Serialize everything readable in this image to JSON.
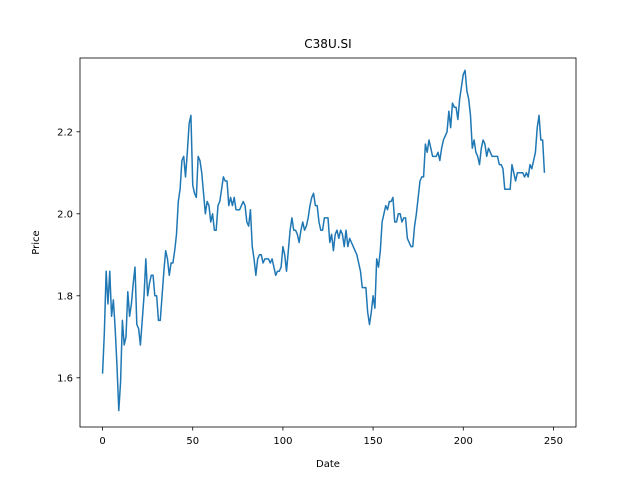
{
  "chart_data": {
    "type": "line",
    "title": "C38U.SI",
    "xlabel": "Date",
    "ylabel": "Price",
    "xlim": [
      -12.5,
      262.5
    ],
    "ylim": [
      1.48,
      2.38
    ],
    "x_ticks": [
      0,
      50,
      100,
      150,
      200,
      250
    ],
    "y_ticks": [
      1.6,
      1.8,
      2.0,
      2.2
    ],
    "y_tick_labels": [
      "1.6",
      "1.8",
      "2.0",
      "2.2"
    ],
    "grid": false,
    "color": "#1f77b4",
    "series": [
      {
        "values": [
          1.61,
          1.71,
          1.86,
          1.78,
          1.86,
          1.75,
          1.79,
          1.72,
          1.63,
          1.52,
          1.59,
          1.74,
          1.68,
          1.7,
          1.81,
          1.75,
          1.78,
          1.83,
          1.87,
          1.73,
          1.72,
          1.68,
          1.74,
          1.8,
          1.89,
          1.8,
          1.83,
          1.85,
          1.85,
          1.8,
          1.8,
          1.74,
          1.74,
          1.8,
          1.86,
          1.91,
          1.89,
          1.85,
          1.88,
          1.88,
          1.91,
          1.95,
          2.03,
          2.06,
          2.13,
          2.14,
          2.09,
          2.15,
          2.22,
          2.24,
          2.07,
          2.05,
          2.04,
          2.14,
          2.13,
          2.1,
          2.05,
          2.0,
          2.03,
          2.02,
          1.98,
          2.0,
          1.96,
          1.96,
          2.02,
          2.03,
          2.06,
          2.09,
          2.08,
          2.08,
          2.02,
          2.04,
          2.02,
          2.04,
          2.01,
          2.01,
          2.01,
          2.02,
          2.03,
          2.02,
          1.98,
          1.97,
          2.01,
          1.92,
          1.89,
          1.85,
          1.89,
          1.9,
          1.9,
          1.88,
          1.89,
          1.89,
          1.89,
          1.88,
          1.89,
          1.87,
          1.85,
          1.86,
          1.86,
          1.87,
          1.92,
          1.9,
          1.86,
          1.91,
          1.96,
          1.99,
          1.96,
          1.96,
          1.95,
          1.93,
          1.96,
          1.98,
          1.96,
          1.97,
          1.99,
          2.02,
          2.04,
          2.05,
          2.02,
          2.02,
          1.98,
          1.96,
          1.96,
          1.99,
          1.99,
          1.99,
          1.93,
          1.95,
          1.91,
          1.95,
          1.96,
          1.94,
          1.96,
          1.95,
          1.92,
          1.96,
          1.92,
          1.94,
          1.93,
          1.92,
          1.91,
          1.9,
          1.88,
          1.86,
          1.82,
          1.82,
          1.82,
          1.76,
          1.73,
          1.76,
          1.8,
          1.77,
          1.89,
          1.87,
          1.91,
          1.98,
          2.0,
          2.02,
          2.01,
          2.03,
          2.03,
          2.04,
          1.98,
          1.98,
          2.0,
          2.0,
          1.98,
          1.99,
          1.99,
          1.94,
          1.93,
          1.92,
          1.92,
          1.97,
          2.0,
          2.04,
          2.08,
          2.09,
          2.09,
          2.17,
          2.15,
          2.18,
          2.16,
          2.14,
          2.14,
          2.14,
          2.15,
          2.13,
          2.16,
          2.18,
          2.19,
          2.2,
          2.25,
          2.21,
          2.27,
          2.26,
          2.26,
          2.23,
          2.28,
          2.31,
          2.34,
          2.35,
          2.3,
          2.28,
          2.24,
          2.16,
          2.18,
          2.15,
          2.14,
          2.12,
          2.16,
          2.18,
          2.17,
          2.14,
          2.16,
          2.15,
          2.14,
          2.14,
          2.14,
          2.14,
          2.12,
          2.12,
          2.11,
          2.06,
          2.06,
          2.06,
          2.06,
          2.12,
          2.1,
          2.08,
          2.1,
          2.1,
          2.1,
          2.1,
          2.09,
          2.1,
          2.09,
          2.12,
          2.11,
          2.13,
          2.15,
          2.21,
          2.24,
          2.18,
          2.18,
          2.1
        ]
      }
    ]
  }
}
